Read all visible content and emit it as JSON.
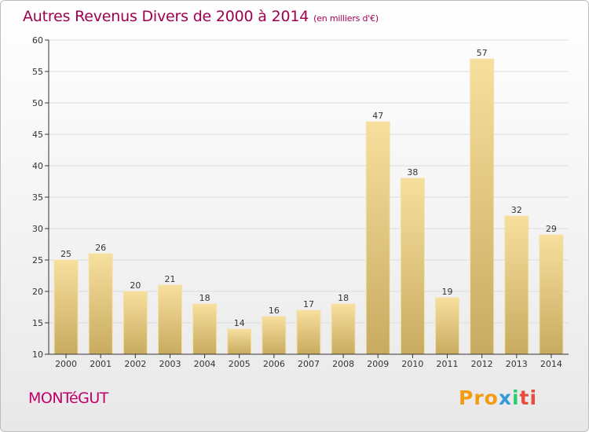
{
  "header": {
    "title": "Autres Revenus Divers de 2000 à 2014",
    "unit": "(en milliers d'€)"
  },
  "footer": {
    "commune": "MONTéGUT",
    "logo": [
      "Pro",
      "x",
      "i",
      "ti"
    ]
  },
  "colors": {
    "title": "#a0004e",
    "bar_light": "#f6dd9a",
    "bar_dark": "#c9ad62",
    "grid": "#dddddd"
  },
  "chart_data": {
    "type": "bar",
    "categories": [
      "2000",
      "2001",
      "2002",
      "2003",
      "2004",
      "2005",
      "2006",
      "2007",
      "2008",
      "2009",
      "2010",
      "2011",
      "2012",
      "2013",
      "2014"
    ],
    "values": [
      25,
      26,
      20,
      21,
      18,
      14,
      16,
      17,
      18,
      47,
      38,
      19,
      57,
      32,
      29
    ],
    "yticks": [
      10,
      15,
      20,
      25,
      30,
      35,
      40,
      45,
      50,
      55,
      60
    ],
    "ylim": [
      10,
      60
    ],
    "grid": true,
    "legend": "none"
  }
}
